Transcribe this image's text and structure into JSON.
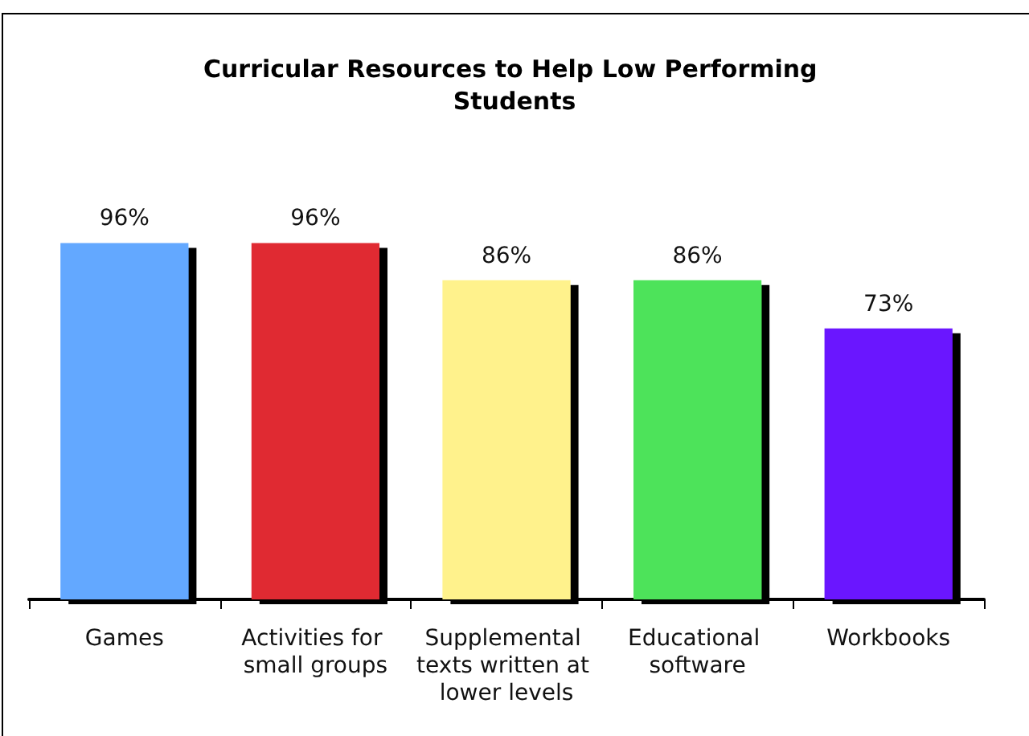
{
  "chart_data": {
    "type": "bar",
    "title": "Curricular Resources to Help Low Performing Students",
    "categories": [
      "Games",
      "Activities for small groups",
      "Supplemental texts written at lower levels",
      "Educational software",
      "Workbooks"
    ],
    "values": [
      96,
      96,
      86,
      86,
      73
    ],
    "value_labels": [
      "96%",
      "96%",
      "86%",
      "86%",
      "73%"
    ],
    "colors": [
      "#63a8ff",
      "#e02b33",
      "#fff28c",
      "#4de35a",
      "#6a14ff"
    ],
    "tick_labels": "x"
  }
}
